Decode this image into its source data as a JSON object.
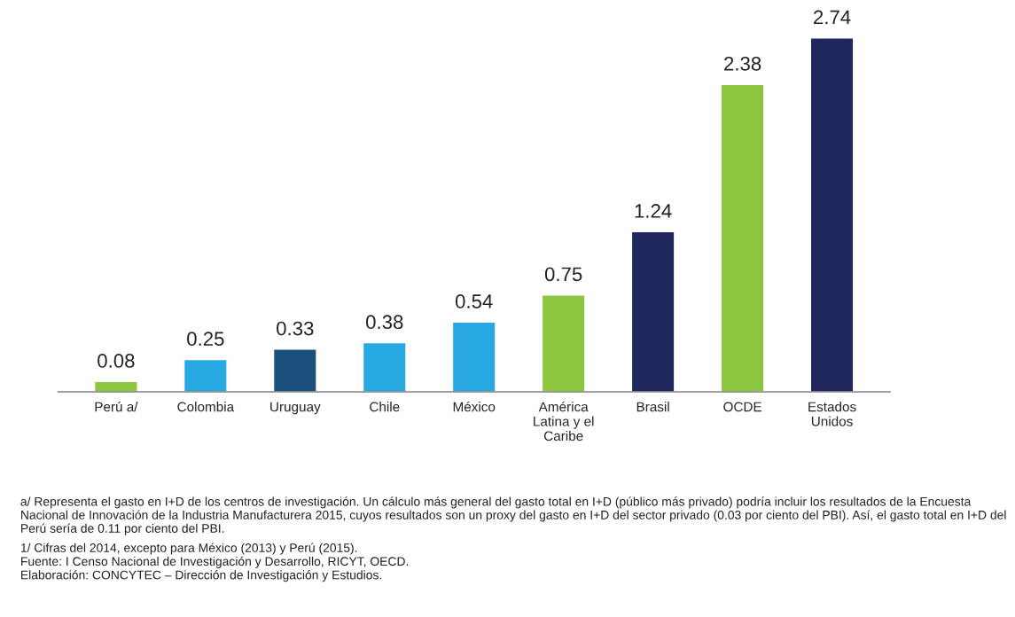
{
  "chart_data": {
    "type": "bar",
    "categories": [
      "Perú a/",
      "Colombia",
      "Uruguay",
      "Chile",
      "México",
      "América\nLatina y el\nCaribe",
      "Brasil",
      "OCDE",
      "Estados\nUnidos"
    ],
    "values": [
      0.08,
      0.25,
      0.33,
      0.38,
      0.54,
      0.75,
      1.24,
      2.38,
      2.74
    ],
    "colors": [
      "#8dc63f",
      "#29a9e1",
      "#1b4f7c",
      "#29a9e1",
      "#29a9e1",
      "#8dc63f",
      "#1f275e",
      "#8dc63f",
      "#1f275e"
    ],
    "data_labels": true,
    "grid": false,
    "legend": false,
    "annotations": [
      "a/ Representa el gasto en I+D de los centros de investigación. Un cálculo más general del gasto total en I+D (público más privado) podría incluir los resultados de la Encuesta Nacional de Innovación de la Industria Manufacturera 2015, cuyos resultados son un proxy del gasto en I+D del sector privado (0.03 por ciento del PBI). Así, el gasto total en I+D del Perú sería de 0.11 por ciento del PBI.",
      "1/ Cifras del 2014, excepto para México (2013) y Perú (2015).",
      "Fuente: I Censo Nacional de Investigación y Desarrollo, RICYT, OECD.",
      "Elaboración: CONCYTEC – Dirección de Investigación y Estudios."
    ]
  }
}
